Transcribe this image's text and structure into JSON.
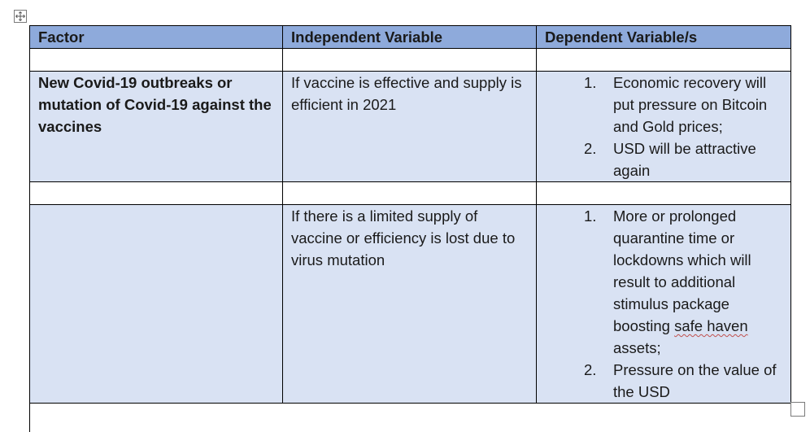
{
  "table": {
    "headers": [
      "Factor",
      "Independent Variable",
      "Dependent Variable/s"
    ],
    "rows": [
      {
        "factor": "New Covid-19 outbreaks or mutation of Covid-19 against the vaccines",
        "independent": "If vaccine is effective and supply is efficient in 2021",
        "dependents": [
          {
            "num": "1.",
            "text": "Economic recovery will put pressure on Bitcoin and Gold prices;"
          },
          {
            "num": "2.",
            "text": "USD will be attractive again"
          }
        ]
      },
      {
        "factor": "",
        "independent": "If there is a limited supply of vaccine or efficiency is lost due to virus mutation",
        "dependents": [
          {
            "num": "1.",
            "text_before": "More or prolonged quarantine time or lockdowns which will result to additional stimulus package boosting ",
            "text_flagged": "safe haven",
            "text_after": " assets;"
          },
          {
            "num": "2.",
            "text": "Pressure on the value of the USD"
          }
        ]
      }
    ]
  },
  "icons": {
    "move": "table-move-handle-icon",
    "resize": "table-resize-handle-icon"
  },
  "colors": {
    "header_bg": "#8eaadb",
    "row_bg": "#d9e2f3",
    "spell_underline": "#c0504d"
  }
}
